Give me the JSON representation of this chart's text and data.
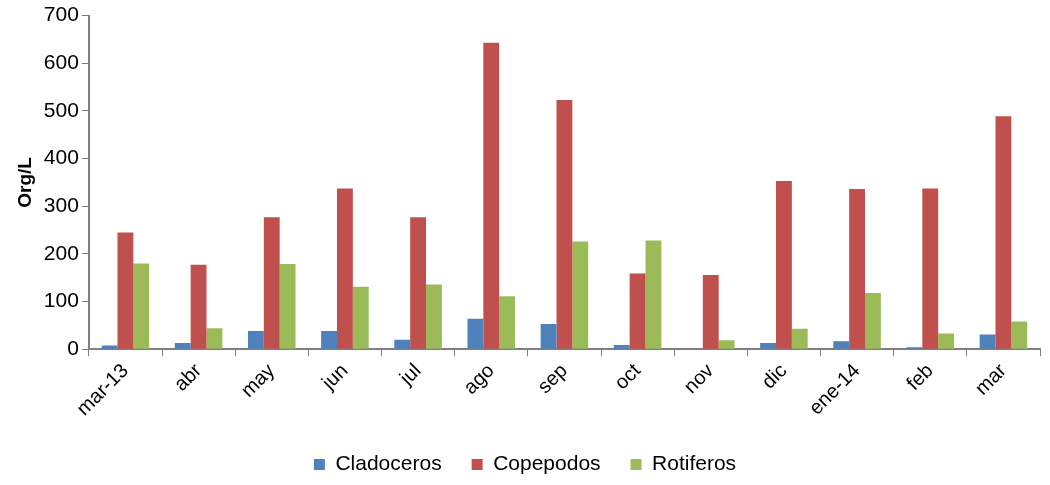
{
  "chart_data": {
    "type": "bar",
    "ylabel": "Org/L",
    "categories": [
      "mar-13",
      "abr",
      "may",
      "jun",
      "jul",
      "ago",
      "sep",
      "oct",
      "nov",
      "dic",
      "ene-14",
      "feb",
      "mar"
    ],
    "series": [
      {
        "name": "Cladoceros",
        "color": "#4f81bd",
        "values": [
          8,
          13,
          38,
          38,
          20,
          64,
          53,
          9,
          0,
          13,
          17,
          4,
          31
        ]
      },
      {
        "name": "Copepodos",
        "color": "#c0504d",
        "values": [
          245,
          177,
          277,
          337,
          277,
          643,
          523,
          159,
          156,
          353,
          336,
          337,
          489
        ]
      },
      {
        "name": "Rotiferos",
        "color": "#9bbb59",
        "values": [
          180,
          44,
          179,
          131,
          136,
          111,
          226,
          228,
          19,
          43,
          118,
          33,
          58
        ]
      }
    ],
    "ylim": [
      0,
      700
    ],
    "yticks": [
      0,
      100,
      200,
      300,
      400,
      500,
      600,
      700
    ],
    "grid": false,
    "legend": "bottom"
  }
}
